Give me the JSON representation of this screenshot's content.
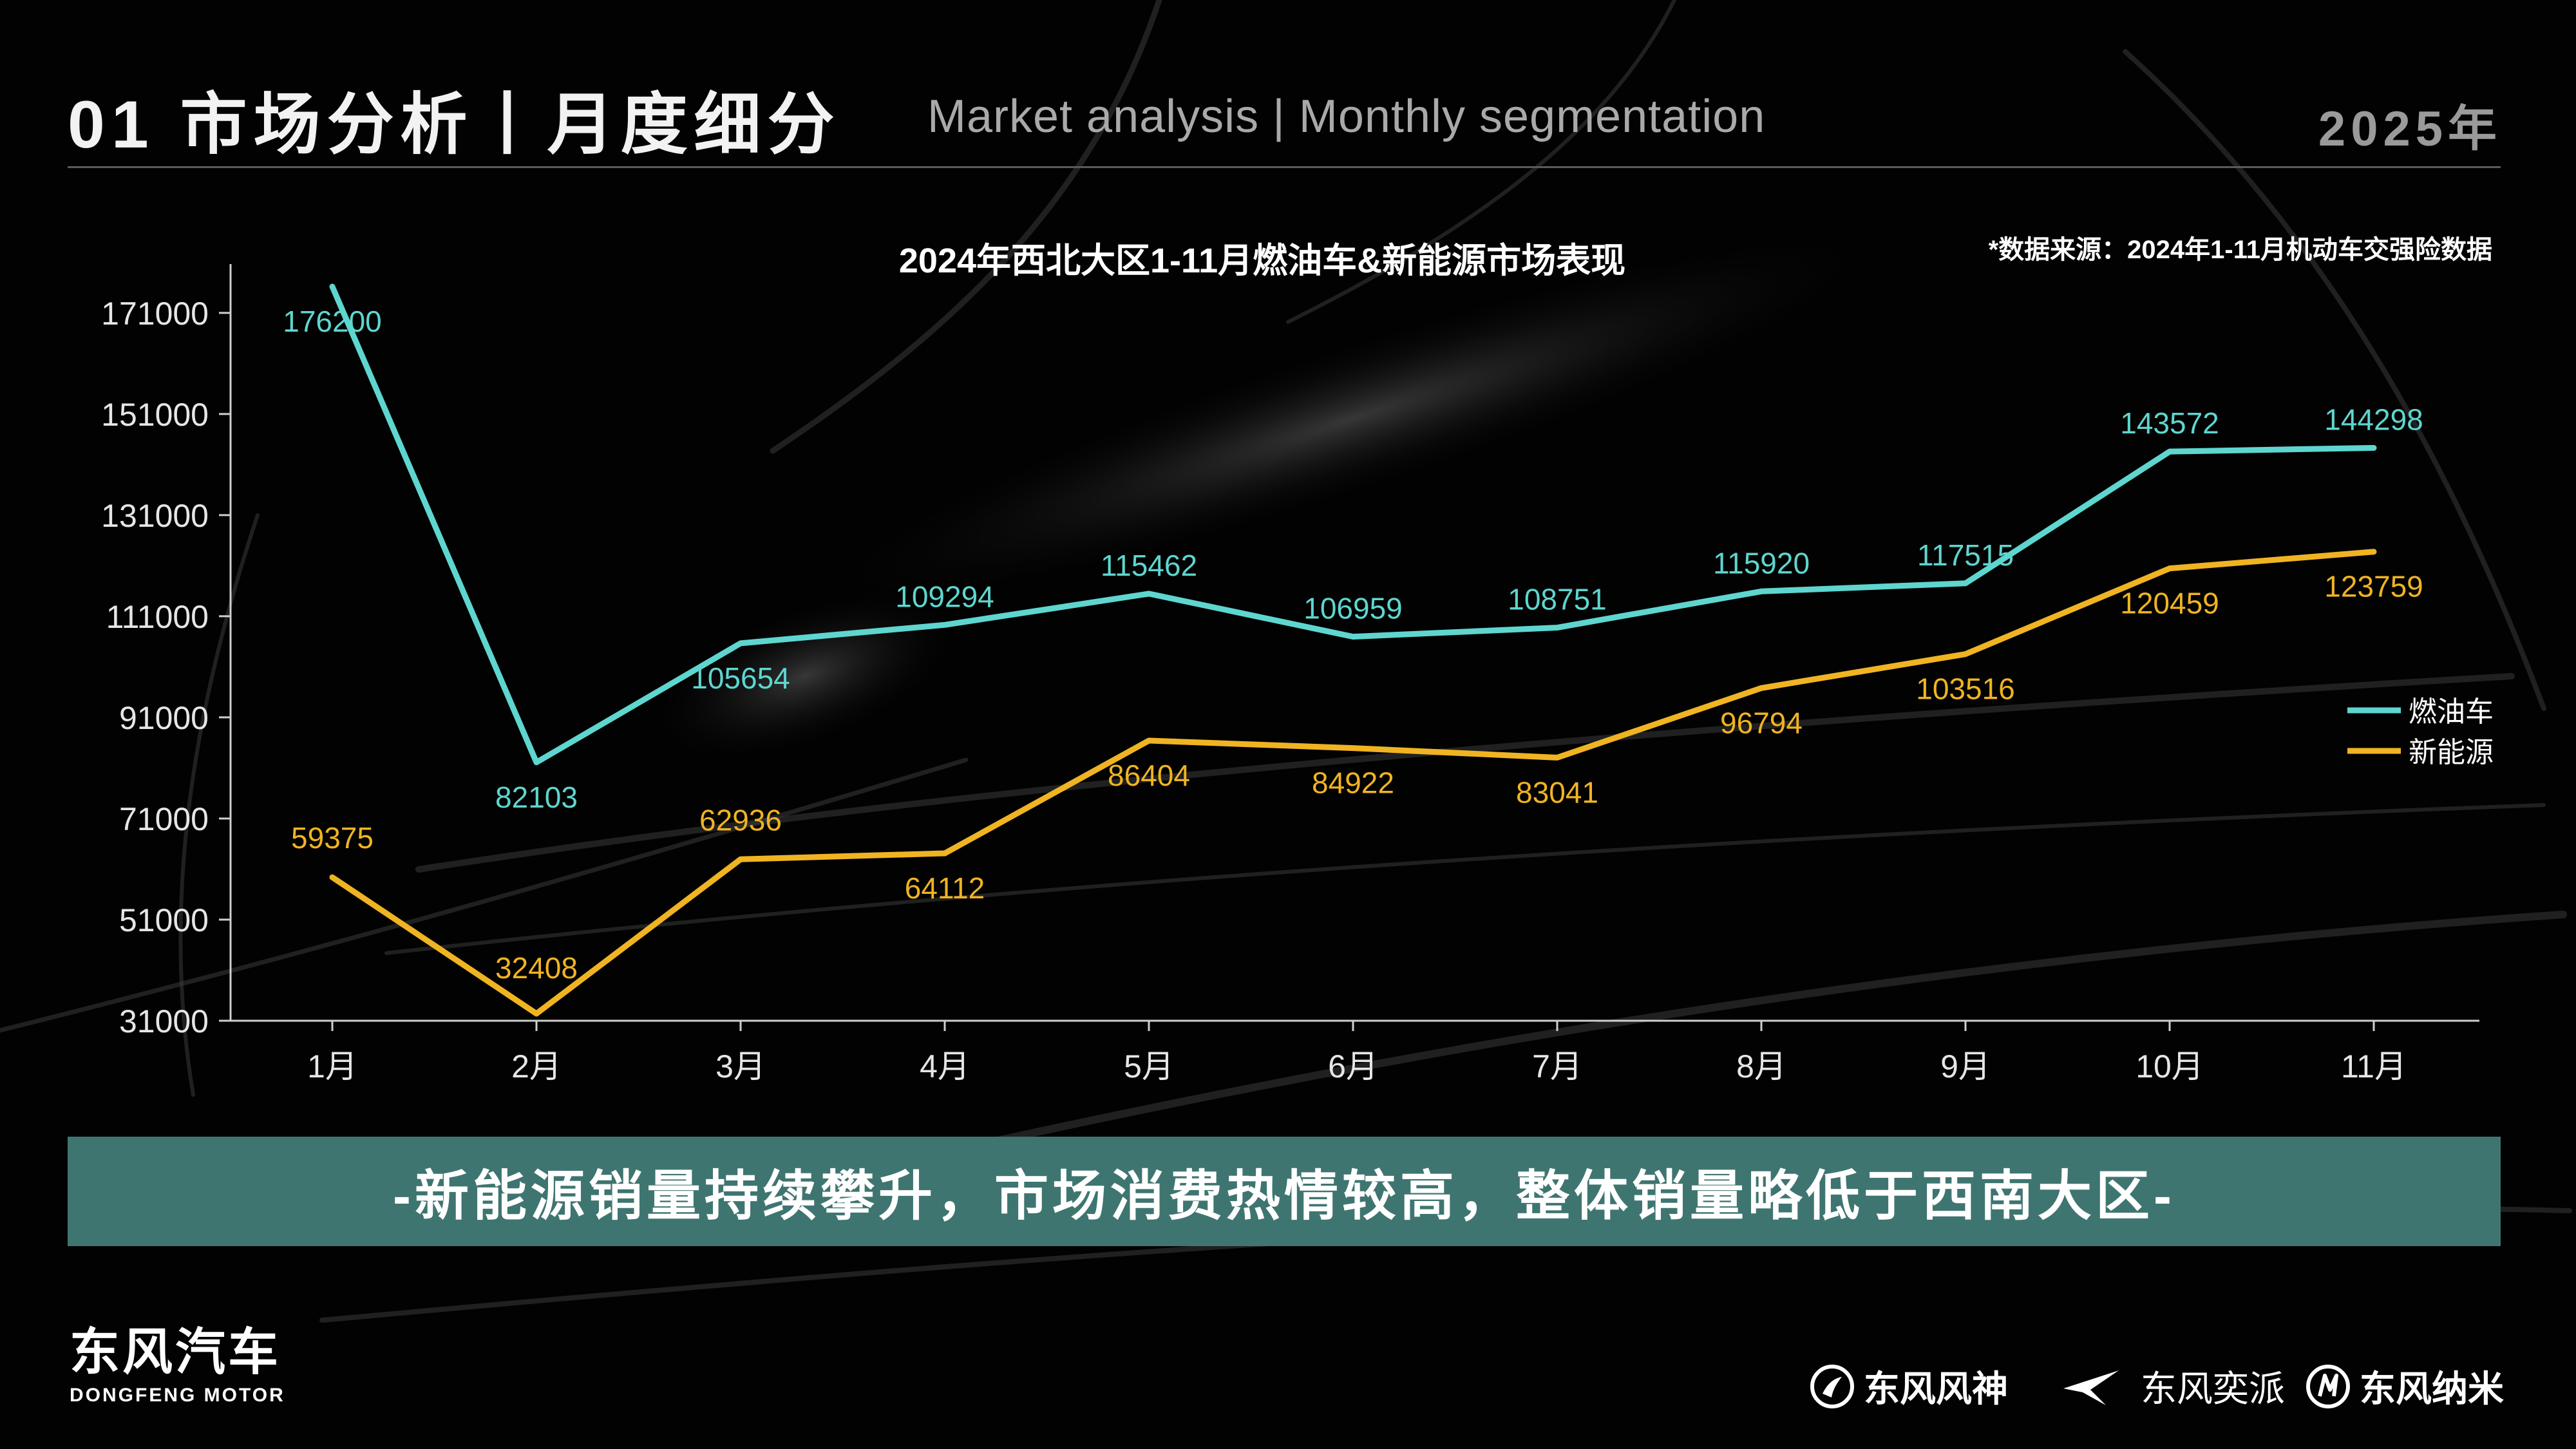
{
  "header": {
    "title": "01 市场分析丨月度细分",
    "subtitle": "Market analysis | Monthly segmentation",
    "year": "2025年"
  },
  "source_note": "*数据来源：2024年1-11月机动车交强险数据",
  "conclusion": "-新能源销量持续攀升，市场消费热情较高，整体销量略低于西南大区-",
  "brand": {
    "name_cn": "东风汽车",
    "name_en": "DONGFENG MOTOR",
    "sub_brands": [
      {
        "label": "东风风神",
        "icon": "fengshen-logo-icon"
      },
      {
        "label": "东风奕派",
        "icon": "yipai-logo-icon"
      },
      {
        "label": "东风纳米",
        "icon": "nami-logo-icon"
      }
    ]
  },
  "colors": {
    "fuel": "#5ed6cf",
    "nev": "#f0b422",
    "band": "#3f7570",
    "axis_text": "#e6e6e6"
  },
  "chart_data": {
    "type": "line",
    "title": "2024年西北大区1-11月燃油车&新能源市场表现",
    "xlabel": "",
    "ylabel": "",
    "categories": [
      "1月",
      "2月",
      "3月",
      "4月",
      "5月",
      "6月",
      "7月",
      "8月",
      "9月",
      "10月",
      "11月"
    ],
    "ylim": [
      31000,
      171000
    ],
    "yticks": [
      31000,
      51000,
      71000,
      91000,
      111000,
      131000,
      151000,
      171000
    ],
    "grid": false,
    "legend": "right",
    "series": [
      {
        "name": "燃油车",
        "color": "#5ed6cf",
        "values": [
          176200,
          82103,
          105654,
          109294,
          115462,
          106959,
          108751,
          115920,
          117515,
          143572,
          144298
        ]
      },
      {
        "name": "新能源",
        "color": "#f0b422",
        "values": [
          59375,
          32408,
          62936,
          64112,
          86404,
          84922,
          83041,
          96794,
          103516,
          120459,
          123759
        ]
      }
    ]
  }
}
